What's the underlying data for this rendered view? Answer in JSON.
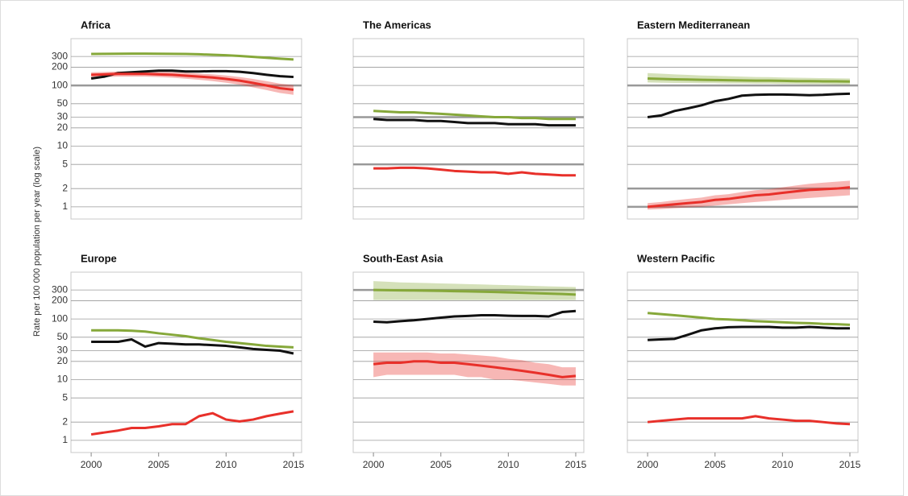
{
  "y_label": "Rate per 100 000 population per year (log scale)",
  "chart_data": [
    {
      "type": "line",
      "title": "Africa",
      "log_y": true,
      "xlim": [
        1998.5,
        2015.6
      ],
      "ylim": [
        0.63,
        590
      ],
      "yticks": [
        1,
        2,
        5,
        10,
        20,
        30,
        50,
        100,
        200,
        300
      ],
      "reference_lines": [
        100
      ],
      "x": [
        2000,
        2001,
        2002,
        2003,
        2004,
        2005,
        2006,
        2007,
        2008,
        2009,
        2010,
        2011,
        2012,
        2013,
        2014,
        2015
      ],
      "series": [
        {
          "color": "#86a83a",
          "values": [
            330,
            332,
            333,
            334,
            334,
            333,
            332,
            330,
            326,
            320,
            314,
            306,
            296,
            286,
            276,
            268
          ]
        },
        {
          "color": "#111111",
          "values": [
            130,
            140,
            160,
            165,
            170,
            175,
            175,
            170,
            170,
            172,
            172,
            168,
            160,
            150,
            142,
            138
          ]
        },
        {
          "color": "#e8302a",
          "values": [
            150,
            152,
            155,
            155,
            155,
            152,
            150,
            145,
            140,
            135,
            128,
            120,
            110,
            100,
            90,
            85
          ],
          "lower": [
            135,
            137,
            140,
            140,
            140,
            137,
            134,
            129,
            124,
            118,
            111,
            103,
            93,
            84,
            75,
            70
          ],
          "upper": [
            165,
            167,
            170,
            170,
            170,
            168,
            166,
            162,
            157,
            152,
            146,
            138,
            128,
            118,
            107,
            101
          ]
        }
      ]
    },
    {
      "type": "line",
      "title": "The Americas",
      "log_y": true,
      "xlim": [
        1998.5,
        2015.6
      ],
      "ylim": [
        0.63,
        590
      ],
      "yticks": [
        1,
        2,
        5,
        10,
        20,
        30,
        50,
        100,
        200,
        300
      ],
      "reference_lines": [
        30,
        5
      ],
      "x": [
        2000,
        2001,
        2002,
        2003,
        2004,
        2005,
        2006,
        2007,
        2008,
        2009,
        2010,
        2011,
        2012,
        2013,
        2014,
        2015
      ],
      "series": [
        {
          "color": "#86a83a",
          "values": [
            38,
            37,
            36,
            36,
            35,
            34,
            33,
            32,
            31,
            30,
            30,
            29,
            29,
            28,
            28,
            28
          ]
        },
        {
          "color": "#111111",
          "values": [
            28,
            27,
            27,
            27,
            26,
            26,
            25,
            24,
            24,
            24,
            23,
            23,
            23,
            22,
            22,
            22
          ]
        },
        {
          "color": "#e8302a",
          "values": [
            4.3,
            4.3,
            4.4,
            4.4,
            4.3,
            4.1,
            3.9,
            3.8,
            3.7,
            3.7,
            3.5,
            3.7,
            3.5,
            3.4,
            3.3,
            3.3
          ]
        }
      ]
    },
    {
      "type": "line",
      "title": "Eastern Mediterranean",
      "log_y": true,
      "xlim": [
        1998.5,
        2015.6
      ],
      "ylim": [
        0.63,
        590
      ],
      "yticks": [
        1,
        2,
        5,
        10,
        20,
        30,
        50,
        100,
        200,
        300
      ],
      "reference_lines": [
        100,
        2,
        1
      ],
      "x": [
        2000,
        2001,
        2002,
        2003,
        2004,
        2005,
        2006,
        2007,
        2008,
        2009,
        2010,
        2011,
        2012,
        2013,
        2014,
        2015
      ],
      "series": [
        {
          "color": "#86a83a",
          "values": [
            130,
            128,
            126,
            125,
            124,
            123,
            122,
            121,
            120,
            120,
            119,
            118,
            118,
            117,
            117,
            116
          ],
          "lower": [
            112,
            111,
            110,
            110,
            109,
            109,
            108,
            108,
            107,
            107,
            106,
            106,
            105,
            105,
            104,
            104
          ],
          "upper": [
            160,
            156,
            152,
            149,
            146,
            144,
            142,
            140,
            138,
            137,
            135,
            134,
            133,
            132,
            131,
            130
          ]
        },
        {
          "color": "#111111",
          "values": [
            30,
            32,
            38,
            42,
            47,
            55,
            60,
            68,
            70,
            71,
            71,
            70,
            69,
            70,
            72,
            73
          ]
        },
        {
          "color": "#e8302a",
          "values": [
            1.0,
            1.05,
            1.1,
            1.15,
            1.2,
            1.3,
            1.35,
            1.45,
            1.55,
            1.6,
            1.7,
            1.8,
            1.9,
            1.95,
            2.0,
            2.1
          ],
          "lower": [
            0.9,
            0.92,
            0.95,
            0.98,
            1.0,
            1.05,
            1.1,
            1.15,
            1.2,
            1.25,
            1.3,
            1.35,
            1.4,
            1.45,
            1.5,
            1.55
          ],
          "upper": [
            1.15,
            1.2,
            1.28,
            1.35,
            1.42,
            1.55,
            1.62,
            1.75,
            1.88,
            1.95,
            2.1,
            2.25,
            2.4,
            2.5,
            2.6,
            2.7
          ]
        }
      ]
    },
    {
      "type": "line",
      "title": "Europe",
      "log_y": true,
      "xlim": [
        1998.5,
        2015.6
      ],
      "ylim": [
        0.63,
        590
      ],
      "yticks": [
        1,
        2,
        5,
        10,
        20,
        30,
        50,
        100,
        200,
        300
      ],
      "xticks": [
        2000,
        2005,
        2010,
        2015
      ],
      "reference_lines": [],
      "x": [
        2000,
        2001,
        2002,
        2003,
        2004,
        2005,
        2006,
        2007,
        2008,
        2009,
        2010,
        2011,
        2012,
        2013,
        2014,
        2015
      ],
      "series": [
        {
          "color": "#86a83a",
          "values": [
            65,
            65,
            65,
            64,
            62,
            58,
            55,
            52,
            48,
            45,
            42,
            40,
            38,
            36,
            35,
            34
          ]
        },
        {
          "color": "#111111",
          "values": [
            42,
            42,
            42,
            46,
            35,
            40,
            39,
            38,
            38,
            37,
            36,
            34,
            32,
            31,
            30,
            27
          ]
        },
        {
          "color": "#e8302a",
          "values": [
            1.25,
            1.35,
            1.45,
            1.6,
            1.6,
            1.7,
            1.85,
            1.85,
            2.5,
            2.8,
            2.2,
            2.05,
            2.2,
            2.5,
            2.75,
            3.0
          ]
        }
      ]
    },
    {
      "type": "line",
      "title": "South-East Asia",
      "log_y": true,
      "xlim": [
        1998.5,
        2015.6
      ],
      "ylim": [
        0.63,
        590
      ],
      "yticks": [
        1,
        2,
        5,
        10,
        20,
        30,
        50,
        100,
        200,
        300
      ],
      "xticks": [
        2000,
        2005,
        2010,
        2015
      ],
      "reference_lines": [
        300
      ],
      "x": [
        2000,
        2001,
        2002,
        2003,
        2004,
        2005,
        2006,
        2007,
        2008,
        2009,
        2010,
        2011,
        2012,
        2013,
        2014,
        2015
      ],
      "series": [
        {
          "color": "#86a83a",
          "values": [
            300,
            298,
            296,
            294,
            292,
            290,
            287,
            284,
            281,
            278,
            274,
            270,
            266,
            262,
            258,
            252
          ],
          "lower": [
            205,
            205,
            205,
            205,
            205,
            205,
            205,
            205,
            205,
            205,
            205,
            205,
            205,
            205,
            205,
            205
          ],
          "upper": [
            420,
            410,
            400,
            395,
            390,
            385,
            380,
            375,
            370,
            365,
            360,
            355,
            350,
            345,
            340,
            335
          ]
        },
        {
          "color": "#111111",
          "values": [
            90,
            88,
            92,
            95,
            100,
            105,
            110,
            112,
            115,
            115,
            113,
            112,
            112,
            110,
            130,
            135
          ]
        },
        {
          "color": "#e8302a",
          "values": [
            18,
            19,
            19,
            20,
            20,
            19,
            19,
            18,
            17,
            16,
            15,
            14,
            13,
            12,
            11,
            11.5
          ],
          "lower": [
            11,
            12,
            12,
            12,
            12,
            12,
            12,
            11,
            11,
            10,
            10,
            9.5,
            9,
            8.5,
            8,
            8
          ],
          "upper": [
            28,
            28,
            28,
            28,
            28,
            27,
            27,
            26,
            25,
            24,
            22,
            21,
            19,
            18,
            16,
            16
          ]
        }
      ]
    },
    {
      "type": "line",
      "title": "Western Pacific",
      "log_y": true,
      "xlim": [
        1998.5,
        2015.6
      ],
      "ylim": [
        0.63,
        590
      ],
      "yticks": [
        1,
        2,
        5,
        10,
        20,
        30,
        50,
        100,
        200,
        300
      ],
      "xticks": [
        2000,
        2005,
        2010,
        2015
      ],
      "reference_lines": [],
      "x": [
        2000,
        2001,
        2002,
        2003,
        2004,
        2005,
        2006,
        2007,
        2008,
        2009,
        2010,
        2011,
        2012,
        2013,
        2014,
        2015
      ],
      "series": [
        {
          "color": "#86a83a",
          "values": [
            125,
            120,
            115,
            110,
            105,
            100,
            98,
            95,
            92,
            90,
            88,
            86,
            85,
            83,
            82,
            80
          ]
        },
        {
          "color": "#111111",
          "values": [
            45,
            46,
            47,
            55,
            65,
            70,
            73,
            74,
            74,
            74,
            72,
            72,
            74,
            72,
            70,
            70
          ]
        },
        {
          "color": "#e8302a",
          "values": [
            2.0,
            2.1,
            2.2,
            2.3,
            2.3,
            2.3,
            2.3,
            2.3,
            2.5,
            2.3,
            2.2,
            2.1,
            2.1,
            2.0,
            1.9,
            1.85
          ]
        }
      ]
    }
  ]
}
